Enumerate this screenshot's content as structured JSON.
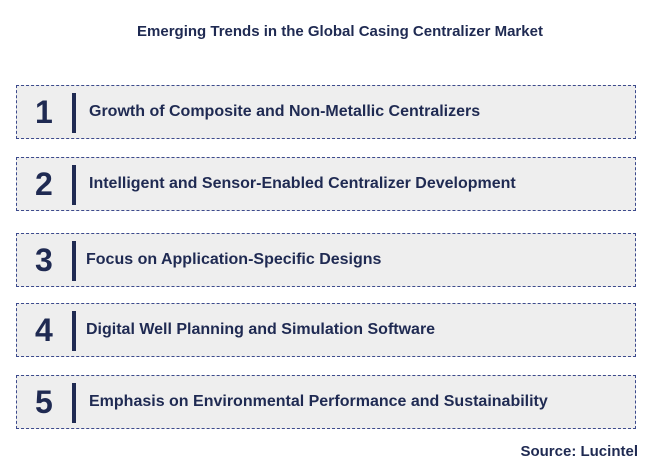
{
  "title": "Emerging Trends in the Global Casing Centralizer Market",
  "trends": [
    {
      "number": "1",
      "label": "Growth of Composite and Non-Metallic Centralizers"
    },
    {
      "number": "2",
      "label": "Intelligent and Sensor-Enabled Centralizer Development"
    },
    {
      "number": "3",
      "label": "Focus on Application-Specific Designs"
    },
    {
      "number": "4",
      "label": "Digital Well Planning and Simulation Software"
    },
    {
      "number": "5",
      "label": "Emphasis on Environmental Performance and Sustainability"
    }
  ],
  "source": "Source: Lucintel",
  "colors": {
    "text": "#1f2a52",
    "box_background": "#eeeeee",
    "box_border": "#3c4a8c"
  }
}
